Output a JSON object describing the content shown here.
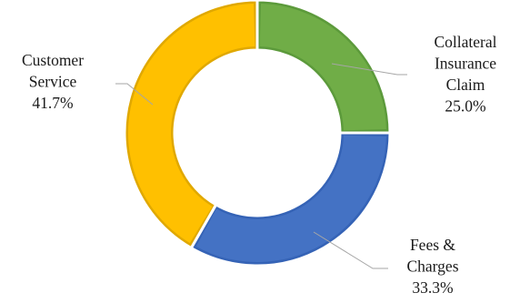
{
  "chart_data": {
    "type": "pie",
    "subtype": "doughnut",
    "title": "",
    "legend": "none",
    "slices": [
      {
        "category_lines": [
          "Collateral",
          "Insurance",
          "Claim"
        ],
        "percent_label": "25.0%",
        "value": 25.0,
        "color": "#70ad47",
        "edge_color": "#5c9a3b"
      },
      {
        "category_lines": [
          "Fees &",
          "Charges"
        ],
        "percent_label": "33.3%",
        "value": 33.3,
        "color": "#4472c4",
        "edge_color": "#3563b6"
      },
      {
        "category_lines": [
          "Customer",
          "Service"
        ],
        "percent_label": "41.7%",
        "value": 41.7,
        "color": "#ffc000",
        "edge_color": "#e0a800"
      }
    ]
  },
  "colors": {
    "label_text": "#1a1a1a",
    "leader_line": "#a6a6a6",
    "background": "#ffffff"
  }
}
